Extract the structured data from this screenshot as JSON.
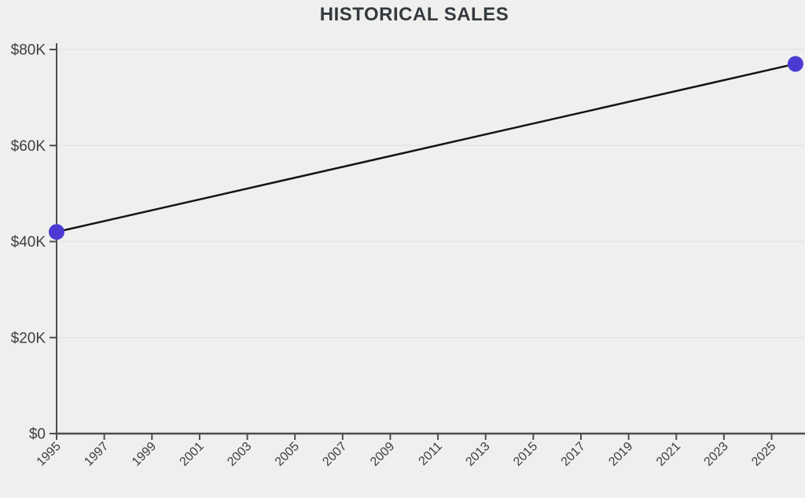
{
  "chart_data": {
    "type": "line",
    "title": "HISTORICAL SALES",
    "series": [
      {
        "name": "Historical Sales",
        "x": [
          1995,
          2026
        ],
        "y": [
          42000,
          77000
        ]
      }
    ],
    "xlabel": "",
    "ylabel": "",
    "xlim": [
      1995,
      2026.4
    ],
    "ylim": [
      0,
      80000
    ],
    "x_ticks": [
      1995,
      1997,
      1999,
      2001,
      2003,
      2005,
      2007,
      2009,
      2011,
      2013,
      2015,
      2017,
      2019,
      2021,
      2023,
      2025
    ],
    "x_tick_labels": [
      "1995",
      "1997",
      "1999",
      "2001",
      "2003",
      "2005",
      "2007",
      "2009",
      "2011",
      "2013",
      "2015",
      "2017",
      "2019",
      "2021",
      "2023",
      "2025"
    ],
    "y_ticks": [
      0,
      20000,
      40000,
      60000,
      80000
    ],
    "y_tick_labels": [
      "$0",
      "$20K",
      "$40K",
      "$60K",
      "$80K"
    ],
    "grid": "horizontal",
    "legend": "none",
    "colors": {
      "background": "#efefee",
      "line": "#141414",
      "point": "#4c3bd3",
      "axis": "#4d4d4d",
      "gridline": "#e3e3e3",
      "tick_label": "#3c4043",
      "title": "#343a3e"
    }
  }
}
